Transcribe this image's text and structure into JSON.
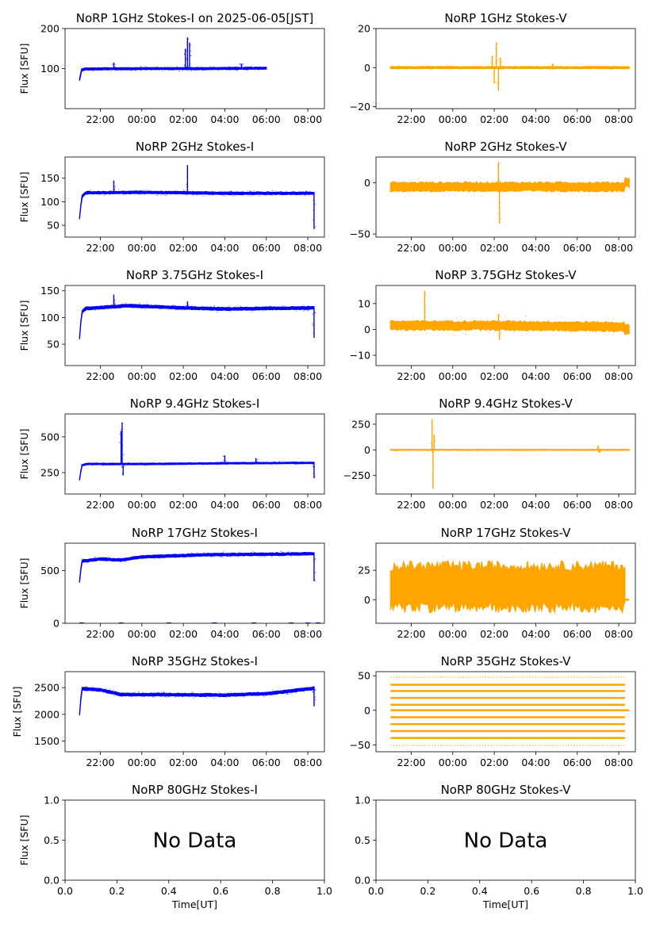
{
  "figure": {
    "xlabel": "Time[UT]",
    "ylabel": "Flux [SFU]",
    "time_ticks": [
      "22:00",
      "00:00",
      "02:00",
      "04:00",
      "06:00",
      "08:00"
    ],
    "no_data_text": "No Data",
    "colors": {
      "stokes_i": "#0000ff",
      "stokes_v": "#ffa500",
      "axes": "#000000"
    }
  },
  "chart_data": [
    {
      "type": "scatter",
      "row": 0,
      "col": 0,
      "title": "NoRP 1GHz Stokes-I on 2025-06-05[JST]",
      "xlim": [
        20.3,
        32.8
      ],
      "ylim": [
        0,
        200
      ],
      "yticks": [
        100,
        200
      ],
      "ytick_labels": [
        "100",
        "200"
      ],
      "series": [
        {
          "name": "Stokes-I",
          "baseline": [
            [
              21.0,
              72
            ],
            [
              21.1,
              97
            ],
            [
              21.3,
              99
            ],
            [
              24,
              100
            ],
            [
              27,
              100
            ],
            [
              30,
              101
            ],
            [
              30.0,
              102
            ]
          ],
          "band": 3,
          "spikes": [
            [
              22.65,
              115
            ],
            [
              26.1,
              150
            ],
            [
              26.2,
              178
            ],
            [
              26.3,
              165
            ],
            [
              28.8,
              112
            ]
          ],
          "start": 21.0,
          "end": 30.0
        }
      ]
    },
    {
      "type": "scatter",
      "row": 0,
      "col": 1,
      "title": "NoRP 1GHz Stokes-V",
      "xlim": [
        20.3,
        32.8
      ],
      "ylim": [
        -21,
        20
      ],
      "yticks": [
        -20,
        0,
        20
      ],
      "ytick_labels": [
        "−20",
        "0",
        "20"
      ],
      "series": [
        {
          "name": "Stokes-V",
          "baseline": [
            [
              21.0,
              0
            ],
            [
              32.5,
              0
            ]
          ],
          "band": 0.6,
          "spikes": [
            [
              25.9,
              6
            ],
            [
              26.0,
              -8
            ],
            [
              26.1,
              13
            ],
            [
              26.2,
              -12
            ],
            [
              26.3,
              5
            ],
            [
              28.8,
              2
            ]
          ],
          "start": 21.0,
          "end": 32.5
        }
      ]
    },
    {
      "type": "scatter",
      "row": 1,
      "col": 0,
      "title": "NoRP 2GHz Stokes-I",
      "xlim": [
        20.3,
        32.8
      ],
      "ylim": [
        25,
        195
      ],
      "yticks": [
        50,
        100,
        150
      ],
      "ytick_labels": [
        "50",
        "100",
        "150"
      ],
      "series": [
        {
          "name": "Stokes-I",
          "baseline": [
            [
              21.0,
              65
            ],
            [
              21.1,
              110
            ],
            [
              21.3,
              119
            ],
            [
              24,
              120
            ],
            [
              28,
              118
            ],
            [
              32.3,
              118
            ]
          ],
          "band": 3,
          "spikes": [
            [
              22.65,
              145
            ],
            [
              26.2,
              178
            ],
            [
              32.3,
              42
            ]
          ],
          "start": 21.0,
          "end": 32.3
        }
      ]
    },
    {
      "type": "scatter",
      "row": 1,
      "col": 1,
      "title": "NoRP 2GHz Stokes-V",
      "xlim": [
        20.3,
        32.8
      ],
      "ylim": [
        -53,
        25
      ],
      "yticks": [
        -50,
        0
      ],
      "ytick_labels": [
        "−50",
        "0"
      ],
      "series": [
        {
          "name": "Stokes-V",
          "baseline": [
            [
              21.0,
              -4
            ],
            [
              32.3,
              -4
            ],
            [
              32.3,
              0
            ],
            [
              32.5,
              0
            ]
          ],
          "band": 5,
          "spikes": [
            [
              26.2,
              20
            ],
            [
              26.25,
              -40
            ]
          ],
          "start": 21.0,
          "end": 32.5
        }
      ]
    },
    {
      "type": "scatter",
      "row": 2,
      "col": 0,
      "title": "NoRP 3.75GHz Stokes-I",
      "xlim": [
        20.3,
        32.8
      ],
      "ylim": [
        10,
        160
      ],
      "yticks": [
        50,
        100,
        150
      ],
      "ytick_labels": [
        "50",
        "100",
        "150"
      ],
      "series": [
        {
          "name": "Stokes-I",
          "baseline": [
            [
              21.0,
              62
            ],
            [
              21.1,
              110
            ],
            [
              21.3,
              117
            ],
            [
              23.3,
              122
            ],
            [
              26,
              118
            ],
            [
              28,
              116
            ],
            [
              32.3,
              118
            ]
          ],
          "band": 3,
          "spikes": [
            [
              22.65,
              143
            ],
            [
              26.2,
              130
            ],
            [
              32.3,
              62
            ]
          ],
          "start": 21.0,
          "end": 32.3
        }
      ]
    },
    {
      "type": "scatter",
      "row": 2,
      "col": 1,
      "title": "NoRP 3.75GHz Stokes-V",
      "xlim": [
        20.3,
        32.8
      ],
      "ylim": [
        -14,
        17
      ],
      "yticks": [
        -10,
        0,
        10
      ],
      "ytick_labels": [
        "−10",
        "0",
        "10"
      ],
      "series": [
        {
          "name": "Stokes-V",
          "baseline": [
            [
              21.0,
              1.5
            ],
            [
              26,
              1.5
            ],
            [
              32.3,
              1.0
            ],
            [
              32.3,
              0
            ],
            [
              32.5,
              0
            ]
          ],
          "band": 2,
          "spikes": [
            [
              22.65,
              15
            ],
            [
              26.2,
              6
            ],
            [
              26.25,
              -4
            ]
          ],
          "start": 21.0,
          "end": 32.5
        }
      ]
    },
    {
      "type": "scatter",
      "row": 3,
      "col": 0,
      "title": "NoRP 9.4GHz Stokes-I",
      "xlim": [
        20.3,
        32.8
      ],
      "ylim": [
        100,
        660
      ],
      "yticks": [
        250,
        500
      ],
      "ytick_labels": [
        "250",
        "500"
      ],
      "series": [
        {
          "name": "Stokes-I",
          "baseline": [
            [
              21.0,
              200
            ],
            [
              21.1,
              300
            ],
            [
              21.3,
              310
            ],
            [
              24,
              310
            ],
            [
              28,
              315
            ],
            [
              32.3,
              318
            ]
          ],
          "band": 6,
          "spikes": [
            [
              23.0,
              540
            ],
            [
              23.05,
              600
            ],
            [
              23.1,
              230
            ],
            [
              28.0,
              370
            ],
            [
              29.5,
              350
            ],
            [
              32.3,
              210
            ]
          ],
          "start": 21.0,
          "end": 32.3
        }
      ]
    },
    {
      "type": "scatter",
      "row": 3,
      "col": 1,
      "title": "NoRP 9.4GHz Stokes-V",
      "xlim": [
        20.3,
        32.8
      ],
      "ylim": [
        -430,
        350
      ],
      "yticks": [
        -250,
        0,
        250
      ],
      "ytick_labels": [
        "−250",
        "0",
        "250"
      ],
      "series": [
        {
          "name": "Stokes-V",
          "baseline": [
            [
              21.0,
              0
            ],
            [
              32.5,
              0
            ]
          ],
          "band": 5,
          "spikes": [
            [
              23.0,
              300
            ],
            [
              23.05,
              -380
            ],
            [
              23.1,
              150
            ],
            [
              31.0,
              40
            ],
            [
              31.05,
              -30
            ]
          ],
          "start": 21.0,
          "end": 32.5
        }
      ]
    },
    {
      "type": "scatter",
      "row": 4,
      "col": 0,
      "title": "NoRP 17GHz Stokes-I",
      "xlim": [
        20.3,
        32.8
      ],
      "ylim": [
        0,
        760
      ],
      "yticks": [
        0,
        500
      ],
      "ytick_labels": [
        "0",
        "500"
      ],
      "series": [
        {
          "name": "Stokes-I",
          "baseline": [
            [
              21.0,
              400
            ],
            [
              21.1,
              590
            ],
            [
              22,
              610
            ],
            [
              23,
              600
            ],
            [
              24,
              630
            ],
            [
              27,
              650
            ],
            [
              30,
              655
            ],
            [
              32.3,
              660
            ]
          ],
          "band": 14,
          "spikes": [
            [
              32.3,
              400
            ]
          ],
          "start": 21.0,
          "end": 32.3
        },
        {
          "name": "Stokes-I-zero",
          "zero_dots": [
            21.1,
            23.0,
            25.3,
            27.5,
            29.4,
            31.2,
            32.0,
            32.5
          ]
        }
      ]
    },
    {
      "type": "scatter",
      "row": 4,
      "col": 1,
      "title": "NoRP 17GHz Stokes-V",
      "xlim": [
        20.3,
        32.8
      ],
      "ylim": [
        -20,
        48
      ],
      "yticks": [
        0,
        25
      ],
      "ytick_labels": [
        "0",
        "25"
      ],
      "series": [
        {
          "name": "Stokes-V",
          "baseline": [
            [
              21.0,
              11
            ],
            [
              32.3,
              11
            ]
          ],
          "band": 22,
          "spikes": [],
          "start": 21.0,
          "end": 32.3,
          "flat_zero": [
            [
              21.0,
              21.1
            ],
            [
              32.3,
              32.5
            ]
          ]
        }
      ]
    },
    {
      "type": "scatter",
      "row": 5,
      "col": 0,
      "title": "NoRP 35GHz Stokes-I",
      "xlim": [
        20.3,
        32.8
      ],
      "ylim": [
        1300,
        2800
      ],
      "yticks": [
        1500,
        2000,
        2500
      ],
      "ytick_labels": [
        "1500",
        "2000",
        "2500"
      ],
      "series": [
        {
          "name": "Stokes-I",
          "baseline": [
            [
              21.0,
              2000
            ],
            [
              21.1,
              2480
            ],
            [
              22,
              2460
            ],
            [
              23,
              2370
            ],
            [
              25,
              2370
            ],
            [
              28,
              2360
            ],
            [
              30,
              2390
            ],
            [
              31,
              2430
            ],
            [
              32.3,
              2490
            ]
          ],
          "band": 30,
          "spikes": [
            [
              32.3,
              2150
            ]
          ],
          "start": 21.0,
          "end": 32.3
        }
      ]
    },
    {
      "type": "scatter",
      "row": 5,
      "col": 1,
      "title": "NoRP 35GHz Stokes-V",
      "xlim": [
        20.3,
        32.8
      ],
      "ylim": [
        -60,
        56
      ],
      "yticks": [
        -50,
        0,
        50
      ],
      "ytick_labels": [
        "−50",
        "0",
        "50"
      ],
      "series": [
        {
          "name": "Stokes-V",
          "levels": [
            -51,
            -40,
            -30,
            -20,
            -10,
            0,
            8,
            18,
            28,
            37,
            48
          ],
          "start": 21.0,
          "end": 32.3
        }
      ]
    },
    {
      "type": "empty",
      "row": 6,
      "col": 0,
      "title": "NoRP 80GHz Stokes-I",
      "xlim": [
        0,
        1
      ],
      "ylim": [
        0,
        1
      ],
      "yticks": [
        0,
        0.5,
        1
      ],
      "ytick_labels": [
        "0.0",
        "0.5",
        "1.0"
      ],
      "xticks": [
        0,
        0.2,
        0.4,
        0.6,
        0.8,
        1.0
      ],
      "xtick_labels": [
        "0.0",
        "0.2",
        "0.4",
        "0.6",
        "0.8",
        "1.0"
      ]
    },
    {
      "type": "empty",
      "row": 6,
      "col": 1,
      "title": "NoRP 80GHz Stokes-V",
      "xlim": [
        0,
        1
      ],
      "ylim": [
        0,
        1
      ],
      "yticks": [
        0,
        0.5,
        1
      ],
      "ytick_labels": [
        "0.0",
        "0.5",
        "1.0"
      ],
      "xticks": [
        0,
        0.2,
        0.4,
        0.6,
        0.8,
        1.0
      ],
      "xtick_labels": [
        "0.0",
        "0.2",
        "0.4",
        "0.6",
        "0.8",
        "1.0"
      ]
    }
  ]
}
